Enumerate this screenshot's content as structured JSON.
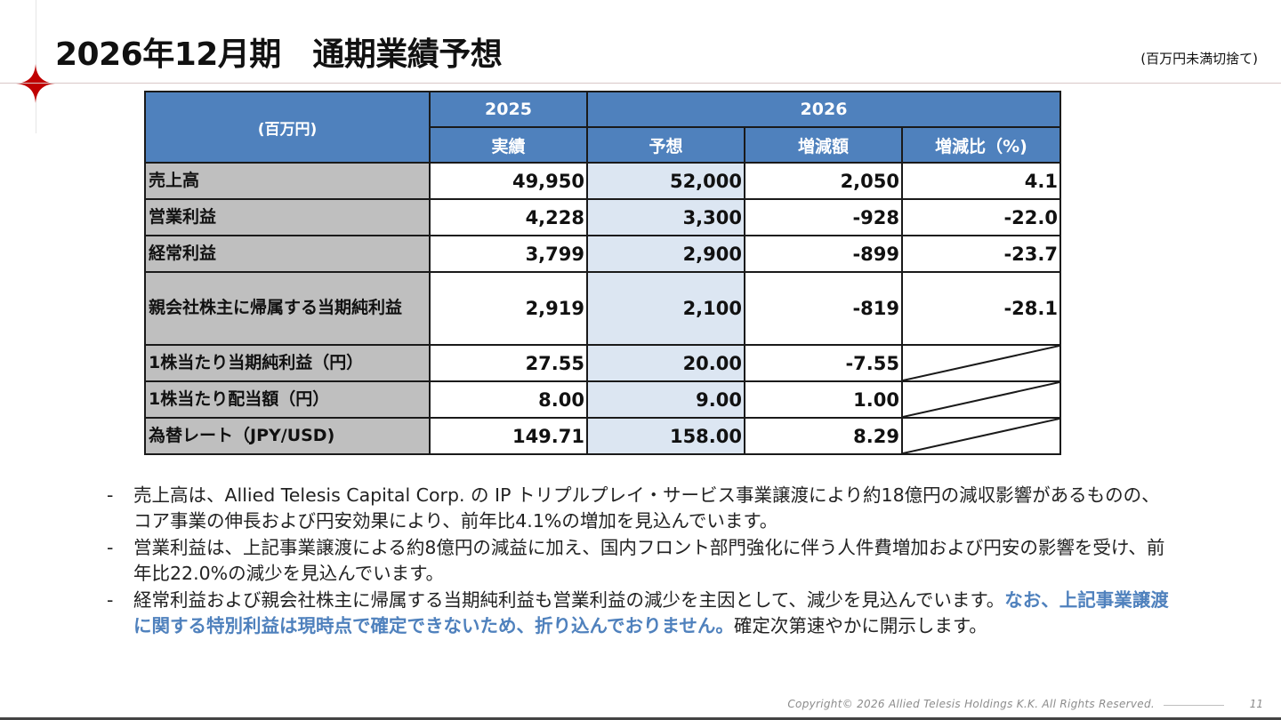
{
  "title": "2026年12月期　通期業績予想",
  "unit_note": "(百万円未満切捨て)",
  "table": {
    "corner_label": "(百万円)",
    "year_actual": "2025",
    "year_forecast": "2026",
    "col_actual": "実績",
    "col_forecast": "予想",
    "col_change": "増減額",
    "col_change_pct": "増減比（%)",
    "rows": [
      {
        "label": "売上高",
        "actual": "49,950",
        "forecast": "52,000",
        "change": "2,050",
        "pct": "4.1"
      },
      {
        "label": "営業利益",
        "actual": "4,228",
        "forecast": "3,300",
        "change": "-928",
        "pct": "-22.0"
      },
      {
        "label": "経常利益",
        "actual": "3,799",
        "forecast": "2,900",
        "change": "-899",
        "pct": "-23.7"
      },
      {
        "label": "親会社株主に帰属する当期純利益",
        "actual": "2,919",
        "forecast": "2,100",
        "change": "-819",
        "pct": "-28.1"
      },
      {
        "label": "1株当たり当期純利益（円）",
        "actual": "27.55",
        "forecast": "20.00",
        "change": "-7.55",
        "pct": null
      },
      {
        "label": "1株当たり配当額（円）",
        "actual": "8.00",
        "forecast": "9.00",
        "change": "1.00",
        "pct": null
      },
      {
        "label": "為替レート（JPY/USD)",
        "actual": "149.71",
        "forecast": "158.00",
        "change": "8.29",
        "pct": null
      }
    ]
  },
  "notes": {
    "dash": "-",
    "n1": "売上高は、Allied Telesis Capital Corp. の IP トリプルプレイ・サービス事業譲渡により約18億円の減収影響があるものの、コア事業の伸長および円安効果により、前年比4.1%の増加を見込んでいます。",
    "n2": "営業利益は、上記事業譲渡による約8億円の減益に加え、国内フロント部門強化に伴う人件費増加および円安の影響を受け、前年比22.0%の減少を見込んでいます。",
    "n3_a": "経常利益および親会社株主に帰属する当期純利益も営業利益の減少を主因として、減少を見込んでいます。",
    "n3_highlight": "なお、上記事業譲渡に関する特別利益は現時点で確定できないため、折り込んでおりません。",
    "n3_b": "確定次第速やかに開示します。"
  },
  "footer": {
    "copyright": "Copyright© 2026 Allied Telesis Holdings K.K. All Rights Reserved.",
    "page": "11"
  },
  "colors": {
    "header_blue": "#4f81bd",
    "label_gray": "#bfbfbf",
    "forecast_tint": "#dce6f2",
    "accent_red": "#c00000"
  }
}
